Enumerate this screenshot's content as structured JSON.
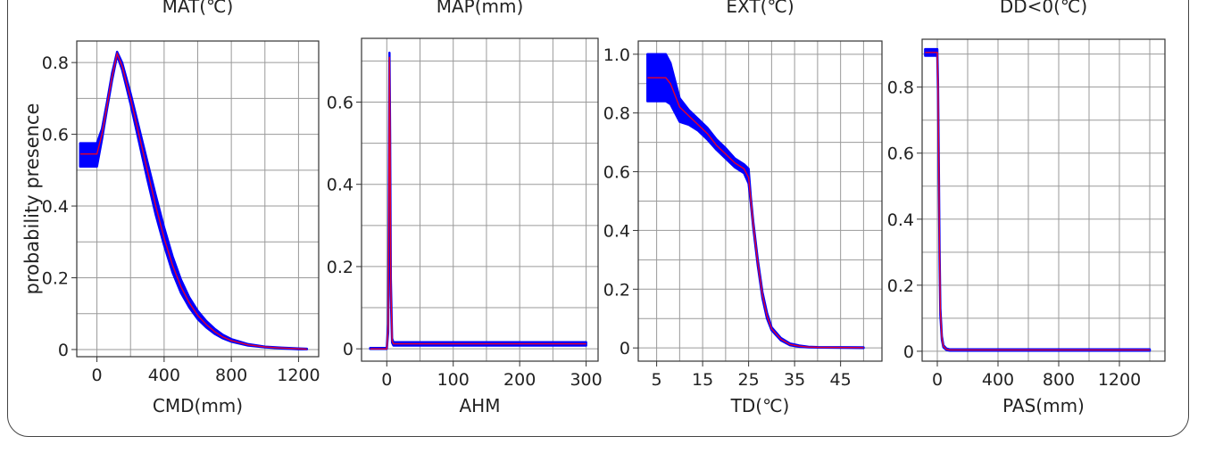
{
  "ylabel": "probability presence",
  "colors": {
    "band": "#0000ff",
    "line": "#e8002a",
    "grid": "#9a9a9a"
  },
  "chart_data": [
    {
      "type": "line",
      "title": "MAT(℃)",
      "xlabel": "CMD(mm)",
      "xlim": [
        -120,
        1320
      ],
      "ylim": [
        -0.02,
        0.86
      ],
      "xticks": [
        0,
        400,
        800,
        1200
      ],
      "xtick_labels": [
        "0",
        "400",
        "800",
        "1200"
      ],
      "xgrid": [
        0,
        200,
        400,
        600,
        800,
        1000,
        1200
      ],
      "yticks": [
        0,
        0.2,
        0.4,
        0.6,
        0.8
      ],
      "ytick_labels": [
        "0",
        "0.2",
        "0.4",
        "0.6",
        "0.8"
      ],
      "ygrid": [
        0,
        0.1,
        0.2,
        0.3,
        0.4,
        0.5,
        0.6,
        0.7,
        0.8
      ],
      "grid": true,
      "series": [
        {
          "x": [
            -100,
            0,
            30,
            60,
            90,
            120,
            150,
            200,
            250,
            300,
            350,
            400,
            450,
            500,
            550,
            600,
            650,
            700,
            750,
            800,
            900,
            1000,
            1100,
            1200,
            1250
          ],
          "y": [
            0.545,
            0.545,
            0.6,
            0.68,
            0.76,
            0.825,
            0.79,
            0.7,
            0.6,
            0.5,
            0.4,
            0.31,
            0.235,
            0.175,
            0.13,
            0.095,
            0.07,
            0.05,
            0.035,
            0.025,
            0.013,
            0.007,
            0.004,
            0.002,
            0.001
          ],
          "upper": [
            0.575,
            0.575,
            0.615,
            0.69,
            0.77,
            0.83,
            0.8,
            0.715,
            0.62,
            0.525,
            0.43,
            0.34,
            0.26,
            0.195,
            0.145,
            0.108,
            0.08,
            0.058,
            0.041,
            0.029,
            0.015,
            0.008,
            0.005,
            0.003,
            0.002
          ],
          "lower": [
            0.51,
            0.51,
            0.585,
            0.67,
            0.75,
            0.82,
            0.78,
            0.685,
            0.58,
            0.475,
            0.375,
            0.29,
            0.215,
            0.158,
            0.117,
            0.085,
            0.062,
            0.044,
            0.031,
            0.022,
            0.011,
            0.006,
            0.003,
            0.001,
            0.001
          ]
        }
      ]
    },
    {
      "type": "line",
      "title": "MAP(mm)",
      "xlabel": "AHM",
      "xlim": [
        -38,
        318
      ],
      "ylim": [
        -0.03,
        0.755
      ],
      "xticks": [
        0,
        100,
        200,
        300
      ],
      "xtick_labels": [
        "0",
        "100",
        "200",
        "300"
      ],
      "xgrid": [
        0,
        50,
        100,
        150,
        200,
        250,
        300
      ],
      "yticks": [
        0,
        0.2,
        0.4,
        0.6
      ],
      "ytick_labels": [
        "0",
        "0.2",
        "0.4",
        "0.6"
      ],
      "ygrid": [
        0,
        0.1,
        0.2,
        0.3,
        0.4,
        0.5,
        0.6,
        0.7
      ],
      "grid": true,
      "series": [
        {
          "x": [
            -25,
            0,
            2,
            3,
            4,
            5,
            6,
            8,
            10,
            15,
            300
          ],
          "y": [
            0,
            0,
            0.05,
            0.3,
            0.71,
            0.5,
            0.15,
            0.02,
            0.012,
            0.012,
            0.012
          ],
          "upper": [
            0.002,
            0.002,
            0.06,
            0.33,
            0.72,
            0.52,
            0.17,
            0.025,
            0.016,
            0.016,
            0.016
          ],
          "lower": [
            0,
            0,
            0.04,
            0.27,
            0.7,
            0.48,
            0.13,
            0.015,
            0.008,
            0.008,
            0.008
          ]
        }
      ]
    },
    {
      "type": "line",
      "title": "EXT(℃)",
      "xlabel": "TD(℃)",
      "xlim": [
        1,
        54
      ],
      "ylim": [
        -0.045,
        1.045
      ],
      "xticks": [
        5,
        15,
        25,
        35,
        45
      ],
      "xtick_labels": [
        "5",
        "15",
        "25",
        "35",
        "45"
      ],
      "xgrid": [
        5,
        10,
        15,
        20,
        25,
        30,
        35,
        40,
        45,
        50
      ],
      "yticks": [
        0,
        0.2,
        0.4,
        0.6,
        0.8,
        1.0
      ],
      "ytick_labels": [
        "0",
        "0.2",
        "0.4",
        "0.6",
        "0.8",
        "1.0"
      ],
      "ygrid": [
        0,
        0.1,
        0.2,
        0.3,
        0.4,
        0.5,
        0.6,
        0.7,
        0.8,
        0.9,
        1.0
      ],
      "grid": true,
      "series": [
        {
          "x": [
            3,
            7,
            8,
            10,
            12,
            14,
            16,
            18,
            20,
            22,
            24,
            25,
            25.5,
            26,
            27,
            28,
            29,
            30,
            32,
            34,
            36,
            38,
            40,
            50
          ],
          "y": [
            0.92,
            0.92,
            0.9,
            0.82,
            0.79,
            0.76,
            0.73,
            0.69,
            0.66,
            0.63,
            0.61,
            0.58,
            0.5,
            0.42,
            0.29,
            0.18,
            0.11,
            0.065,
            0.03,
            0.012,
            0.006,
            0.003,
            0.002,
            0.001
          ],
          "upper": [
            1.0,
            1.0,
            0.97,
            0.85,
            0.81,
            0.78,
            0.75,
            0.71,
            0.68,
            0.645,
            0.625,
            0.61,
            0.51,
            0.43,
            0.3,
            0.19,
            0.12,
            0.07,
            0.034,
            0.015,
            0.008,
            0.004,
            0.003,
            0.002
          ],
          "lower": [
            0.84,
            0.84,
            0.83,
            0.77,
            0.76,
            0.74,
            0.71,
            0.675,
            0.645,
            0.615,
            0.595,
            0.56,
            0.49,
            0.41,
            0.28,
            0.17,
            0.1,
            0.06,
            0.026,
            0.009,
            0.004,
            0.002,
            0.001,
            0
          ]
        }
      ]
    },
    {
      "type": "line",
      "title": "DD<0(℃)",
      "xlabel": "PAS(mm)",
      "xlim": [
        -100,
        1500
      ],
      "ylim": [
        -0.03,
        0.945
      ],
      "xticks": [
        0,
        400,
        800,
        1200
      ],
      "xtick_labels": [
        "0",
        "400",
        "800",
        "1200"
      ],
      "xgrid": [
        0,
        200,
        400,
        600,
        800,
        1000,
        1200,
        1400
      ],
      "yticks": [
        0,
        0.2,
        0.4,
        0.6,
        0.8
      ],
      "ytick_labels": [
        "0",
        "0.2",
        "0.4",
        "0.6",
        "0.8"
      ],
      "ygrid": [
        0,
        0.1,
        0.2,
        0.3,
        0.4,
        0.5,
        0.6,
        0.7,
        0.8,
        0.9
      ],
      "grid": true,
      "series": [
        {
          "x": [
            -80,
            0,
            5,
            10,
            15,
            20,
            30,
            40,
            60,
            80,
            1400
          ],
          "y": [
            0.905,
            0.905,
            0.8,
            0.55,
            0.3,
            0.12,
            0.04,
            0.015,
            0.006,
            0.004,
            0.004
          ],
          "upper": [
            0.915,
            0.915,
            0.81,
            0.56,
            0.31,
            0.13,
            0.045,
            0.018,
            0.008,
            0.006,
            0.006
          ],
          "lower": [
            0.895,
            0.895,
            0.79,
            0.54,
            0.29,
            0.11,
            0.035,
            0.012,
            0.004,
            0.002,
            0.002
          ]
        }
      ]
    }
  ]
}
